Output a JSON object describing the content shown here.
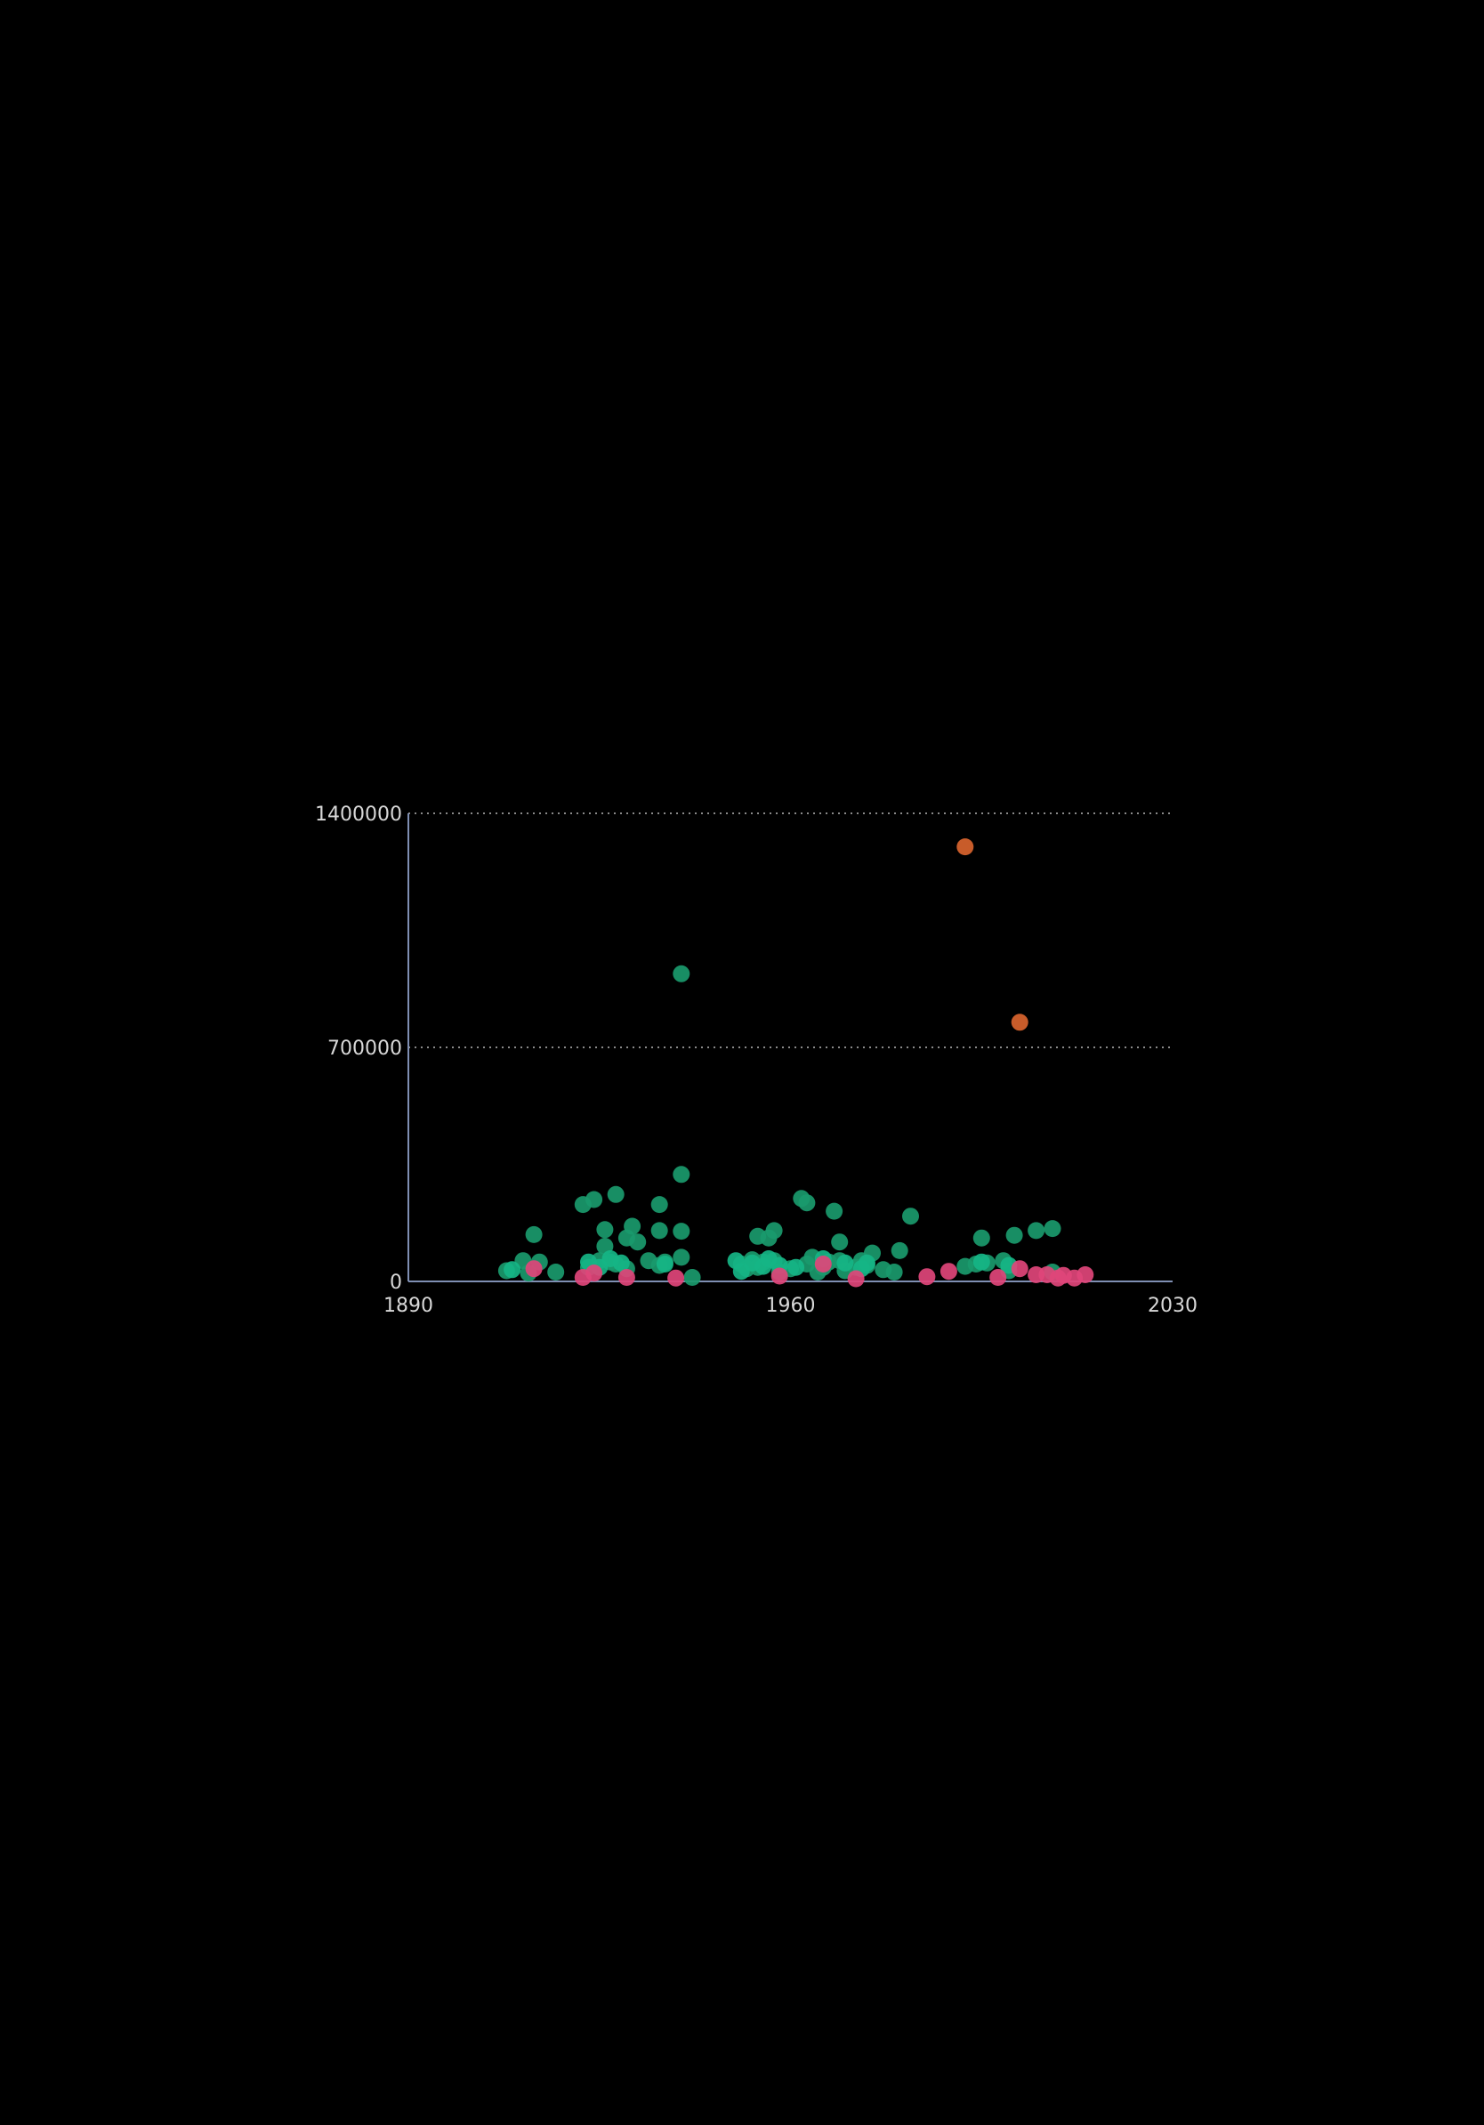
{
  "chart_data": {
    "type": "scatter",
    "title": "",
    "xlabel": "",
    "ylabel": "",
    "xlim": [
      1890,
      2030
    ],
    "ylim": [
      0,
      1400000
    ],
    "x_ticks": [
      1890,
      1960,
      2030
    ],
    "x_tick_labels": [
      "1890",
      "1960",
      "2030"
    ],
    "y_ticks": [
      0,
      700000,
      1400000
    ],
    "y_tick_labels": [
      "0",
      "700000",
      "1400000"
    ],
    "grid": "horizontal-dotted",
    "legend": "none",
    "series": [
      {
        "color": "#1a9a6c",
        "points": [
          [
            1908,
            32000
          ],
          [
            1911,
            62000
          ],
          [
            1912,
            25000
          ],
          [
            1913,
            140000
          ],
          [
            1914,
            58000
          ],
          [
            1917,
            28000
          ],
          [
            1922,
            230000
          ],
          [
            1923,
            42000
          ],
          [
            1924,
            245000
          ],
          [
            1925,
            62000
          ],
          [
            1926,
            105000
          ],
          [
            1926,
            155000
          ],
          [
            1927,
            58000
          ],
          [
            1928,
            260000
          ],
          [
            1928,
            52000
          ],
          [
            1930,
            130000
          ],
          [
            1930,
            38000
          ],
          [
            1931,
            165000
          ],
          [
            1932,
            118000
          ],
          [
            1934,
            62000
          ],
          [
            1936,
            230000
          ],
          [
            1936,
            152000
          ],
          [
            1936,
            48000
          ],
          [
            1937,
            58000
          ],
          [
            1940,
            920000
          ],
          [
            1940,
            320000
          ],
          [
            1940,
            150000
          ],
          [
            1940,
            72000
          ],
          [
            1942,
            12000
          ],
          [
            1951,
            52000
          ],
          [
            1952,
            38000
          ],
          [
            1953,
            65000
          ],
          [
            1954,
            135000
          ],
          [
            1954,
            42000
          ],
          [
            1955,
            58000
          ],
          [
            1956,
            130000
          ],
          [
            1957,
            152000
          ],
          [
            1957,
            62000
          ],
          [
            1958,
            28000
          ],
          [
            1960,
            38000
          ],
          [
            1962,
            248000
          ],
          [
            1963,
            235000
          ],
          [
            1963,
            52000
          ],
          [
            1964,
            72000
          ],
          [
            1965,
            28000
          ],
          [
            1966,
            42000
          ],
          [
            1967,
            58000
          ],
          [
            1968,
            210000
          ],
          [
            1969,
            118000
          ],
          [
            1969,
            62000
          ],
          [
            1970,
            32000
          ],
          [
            1972,
            42000
          ],
          [
            1973,
            62000
          ],
          [
            1974,
            48000
          ],
          [
            1975,
            85000
          ],
          [
            1977,
            35000
          ],
          [
            1979,
            28000
          ],
          [
            1980,
            92000
          ],
          [
            1982,
            195000
          ],
          [
            1992,
            45000
          ],
          [
            1994,
            52000
          ],
          [
            1995,
            130000
          ],
          [
            1996,
            55000
          ],
          [
            1999,
            62000
          ],
          [
            2000,
            32000
          ],
          [
            2001,
            138000
          ],
          [
            2005,
            152000
          ],
          [
            2008,
            158000
          ],
          [
            2008,
            28000
          ]
        ]
      },
      {
        "color": "#16b585",
        "points": [
          [
            1909,
            35000
          ],
          [
            1923,
            58000
          ],
          [
            1925,
            42000
          ],
          [
            1927,
            68000
          ],
          [
            1929,
            55000
          ],
          [
            1937,
            52000
          ],
          [
            1950,
            62000
          ],
          [
            1951,
            30000
          ],
          [
            1953,
            55000
          ],
          [
            1955,
            45000
          ],
          [
            1956,
            68000
          ],
          [
            1958,
            48000
          ],
          [
            1961,
            42000
          ],
          [
            1966,
            68000
          ],
          [
            1970,
            55000
          ],
          [
            1973,
            38000
          ],
          [
            1974,
            55000
          ],
          [
            1995,
            58000
          ],
          [
            2000,
            48000
          ]
        ]
      },
      {
        "color": "#e0457a",
        "points": [
          [
            1913,
            38000
          ],
          [
            1922,
            12000
          ],
          [
            1924,
            25000
          ],
          [
            1930,
            12000
          ],
          [
            1939,
            10000
          ],
          [
            1958,
            16000
          ],
          [
            1966,
            52000
          ],
          [
            1972,
            8000
          ],
          [
            1985,
            14000
          ],
          [
            1989,
            30000
          ],
          [
            1998,
            12000
          ],
          [
            2002,
            38000
          ],
          [
            2005,
            20000
          ],
          [
            2007,
            20000
          ],
          [
            2009,
            10000
          ],
          [
            2010,
            18000
          ],
          [
            2012,
            10000
          ],
          [
            2014,
            20000
          ]
        ]
      },
      {
        "color": "#d9642e",
        "points": [
          [
            1992,
            1300000
          ],
          [
            2002,
            775000
          ]
        ]
      }
    ]
  }
}
